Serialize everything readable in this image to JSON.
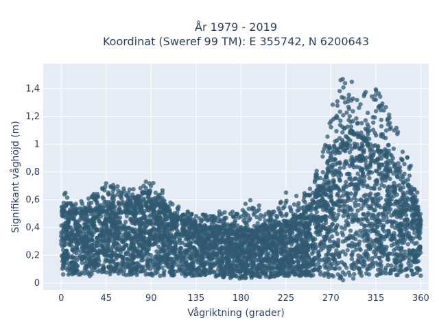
{
  "chart_data": {
    "type": "scatter",
    "title_line1": "År 1979 - 2019",
    "title_line2": "Koordinat (Sweref 99 TM): E 355742, N 6200643",
    "xlabel": "Vågriktning (grader)",
    "ylabel": "Signifikant våghöjd (m)",
    "xlim": [
      -18,
      368
    ],
    "ylim": [
      -0.05,
      1.58
    ],
    "xticks": [
      0,
      45,
      90,
      135,
      180,
      225,
      270,
      315,
      360
    ],
    "xtick_labels": [
      "0",
      "45",
      "90",
      "135",
      "180",
      "225",
      "270",
      "315",
      "360"
    ],
    "yticks": [
      0,
      0.2,
      0.4,
      0.6,
      0.8,
      1.0,
      1.2,
      1.4
    ],
    "ytick_labels": [
      "0",
      "0,2",
      "0,4",
      "0,6",
      "0,8",
      "1",
      "1,2",
      "1,4"
    ],
    "grid": true,
    "marker_color": "#2f5a72",
    "background_color": "#e5ecf6",
    "envelope": {
      "direction": [
        0,
        10,
        20,
        30,
        45,
        60,
        75,
        90,
        100,
        110,
        120,
        135,
        150,
        165,
        180,
        195,
        210,
        225,
        240,
        250,
        260,
        270,
        280,
        290,
        300,
        310,
        320,
        330,
        340,
        350,
        360
      ],
      "core_max": [
        0.52,
        0.5,
        0.5,
        0.52,
        0.55,
        0.56,
        0.57,
        0.58,
        0.55,
        0.5,
        0.45,
        0.42,
        0.4,
        0.38,
        0.37,
        0.38,
        0.4,
        0.43,
        0.48,
        0.55,
        0.68,
        0.85,
        1.0,
        1.08,
        1.05,
        0.98,
        0.95,
        0.88,
        0.8,
        0.65,
        0.45
      ],
      "outer_max": [
        0.72,
        0.58,
        0.6,
        0.62,
        0.75,
        0.68,
        0.7,
        0.75,
        0.68,
        0.6,
        0.54,
        0.5,
        0.52,
        0.52,
        0.58,
        0.66,
        0.52,
        0.66,
        0.62,
        0.7,
        0.9,
        1.24,
        1.48,
        1.47,
        1.36,
        1.52,
        1.41,
        1.25,
        1.05,
        0.85,
        0.58
      ],
      "min": [
        0.05,
        0.05,
        0.05,
        0.05,
        0.05,
        0.05,
        0.05,
        0.05,
        0.05,
        0.05,
        0.05,
        0.05,
        0.05,
        0.04,
        0.03,
        0.04,
        0.04,
        0.05,
        0.05,
        0.05,
        0.05,
        0.04,
        0.02,
        0.02,
        0.04,
        0.05,
        0.05,
        0.05,
        0.05,
        0.05,
        0.05
      ]
    }
  }
}
